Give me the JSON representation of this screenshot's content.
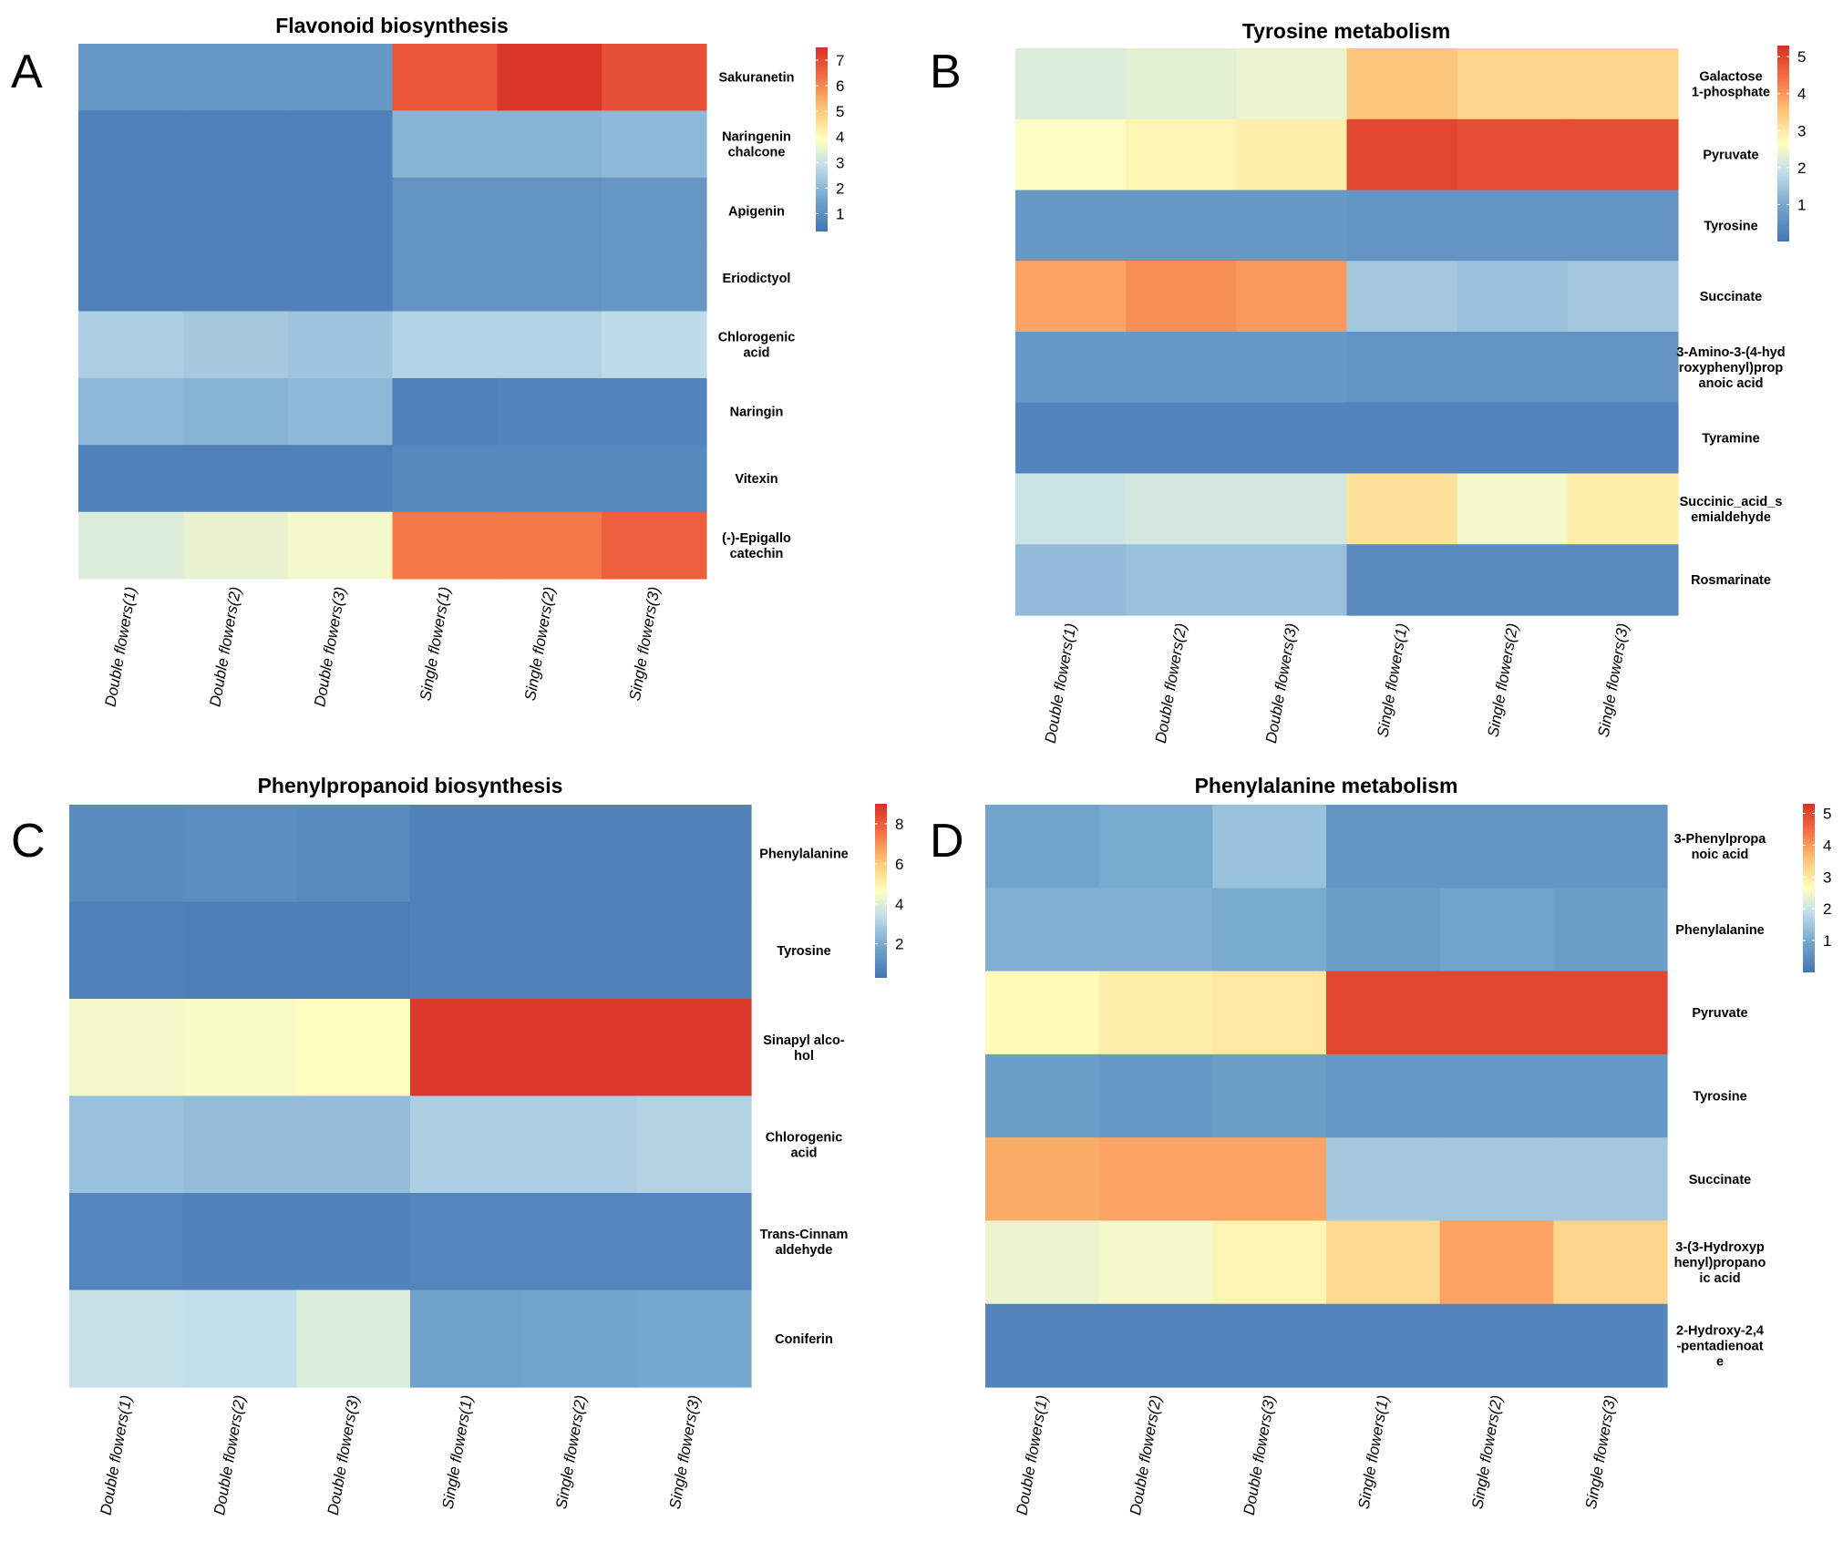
{
  "chart_data": [
    {
      "panel": "A",
      "type": "heatmap",
      "title": "Flavonoid biosynthesis",
      "columns": [
        "Double flowers(1)",
        "Double flowers(2)",
        "Double flowers(3)",
        "Single flowers(1)",
        "Single flowers(2)",
        "Single flowers(3)"
      ],
      "rows": [
        {
          "label": [
            "Sakuranetin"
          ],
          "values": [
            1.2,
            1.2,
            1.2,
            6.8,
            7.4,
            6.9
          ]
        },
        {
          "label": [
            "Naringenin",
            "chalcone"
          ],
          "values": [
            0.6,
            0.6,
            0.6,
            1.9,
            1.9,
            2.0
          ]
        },
        {
          "label": [
            "Apigenin"
          ],
          "values": [
            0.6,
            0.6,
            0.6,
            1.1,
            1.1,
            1.2
          ]
        },
        {
          "label": [
            "Eriodictyol"
          ],
          "values": [
            0.6,
            0.6,
            0.6,
            1.1,
            1.1,
            1.2
          ]
        },
        {
          "label": [
            "Chlorogenic",
            "acid"
          ],
          "values": [
            2.5,
            2.4,
            2.3,
            2.6,
            2.6,
            2.8
          ]
        },
        {
          "label": [
            "Naringin"
          ],
          "values": [
            2.0,
            1.9,
            2.0,
            0.6,
            0.7,
            0.7
          ]
        },
        {
          "label": [
            "Vitexin"
          ],
          "values": [
            0.6,
            0.6,
            0.6,
            0.8,
            0.8,
            0.8
          ]
        },
        {
          "label": [
            "(-)-Epigallo",
            "catechin"
          ],
          "values": [
            3.3,
            3.5,
            3.7,
            6.2,
            6.2,
            6.6
          ]
        }
      ],
      "scale": {
        "min": 0.3,
        "max": 7.5
      },
      "legend_ticks": [
        1,
        2,
        3,
        4,
        5,
        6,
        7
      ]
    },
    {
      "panel": "B",
      "type": "heatmap",
      "title": "Tyrosine metabolism",
      "columns": [
        "Double flowers(1)",
        "Double flowers(2)",
        "Double flowers(3)",
        "Single flowers(1)",
        "Single flowers(2)",
        "Single flowers(3)"
      ],
      "rows": [
        {
          "label": [
            "Galactose",
            "1-phosphate"
          ],
          "values": [
            2.2,
            2.3,
            2.4,
            3.5,
            3.3,
            3.3
          ]
        },
        {
          "label": [
            "Pyruvate"
          ],
          "values": [
            2.6,
            2.8,
            2.9,
            5.0,
            4.9,
            4.9
          ]
        },
        {
          "label": [
            "Tyrosine"
          ],
          "values": [
            0.7,
            0.7,
            0.7,
            0.6,
            0.6,
            0.6
          ]
        },
        {
          "label": [
            "Succinate"
          ],
          "values": [
            3.9,
            4.1,
            4.0,
            1.5,
            1.4,
            1.5
          ]
        },
        {
          "label": [
            "3-Amino-3-(4-hyd",
            "roxyphenyl)prop",
            "anoic acid"
          ],
          "values": [
            0.7,
            0.7,
            0.7,
            0.6,
            0.6,
            0.6
          ]
        },
        {
          "label": [
            "Tyramine"
          ],
          "values": [
            0.3,
            0.3,
            0.3,
            0.3,
            0.3,
            0.3
          ]
        },
        {
          "label": [
            "Succinic_acid_s",
            "emialdehyde"
          ],
          "values": [
            2.0,
            2.1,
            2.1,
            3.1,
            2.5,
            2.9
          ]
        },
        {
          "label": [
            "Rosmarinate"
          ],
          "values": [
            1.3,
            1.4,
            1.4,
            0.4,
            0.4,
            0.4
          ]
        }
      ],
      "scale": {
        "min": 0.0,
        "max": 5.3
      },
      "legend_ticks": [
        1,
        2,
        3,
        4,
        5
      ]
    },
    {
      "panel": "C",
      "type": "heatmap",
      "title": "Phenylpropanoid biosynthesis",
      "columns": [
        "Double flowers(1)",
        "Double flowers(2)",
        "Double flowers(3)",
        "Single flowers(1)",
        "Single flowers(2)",
        "Single flowers(3)"
      ],
      "rows": [
        {
          "label": [
            "Phenylalanine"
          ],
          "values": [
            1.0,
            1.1,
            1.0,
            0.7,
            0.7,
            0.7
          ]
        },
        {
          "label": [
            "Tyrosine"
          ],
          "values": [
            0.7,
            0.6,
            0.6,
            0.7,
            0.7,
            0.7
          ]
        },
        {
          "label": [
            "Sinapyl alco-",
            "hol"
          ],
          "values": [
            4.4,
            4.5,
            4.7,
            8.8,
            8.8,
            8.8
          ]
        },
        {
          "label": [
            "Chlorogenic",
            "acid"
          ],
          "values": [
            2.6,
            2.5,
            2.5,
            3.0,
            3.0,
            3.1
          ]
        },
        {
          "label": [
            "Trans-Cinnam",
            "aldehyde"
          ],
          "values": [
            0.8,
            0.7,
            0.7,
            0.8,
            0.8,
            0.8
          ]
        },
        {
          "label": [
            "Coniferin"
          ],
          "values": [
            3.5,
            3.4,
            3.9,
            1.7,
            1.8,
            1.9
          ]
        }
      ],
      "scale": {
        "min": 0.3,
        "max": 9.0
      },
      "legend_ticks": [
        2,
        4,
        6,
        8
      ]
    },
    {
      "panel": "D",
      "type": "heatmap",
      "title": "Phenylalanine metabolism",
      "columns": [
        "Double flowers(1)",
        "Double flowers(2)",
        "Double flowers(3)",
        "Single flowers(1)",
        "Single flowers(2)",
        "Single flowers(3)"
      ],
      "rows": [
        {
          "label": [
            "3-Phenylpropa",
            "noic acid"
          ],
          "values": [
            0.9,
            1.0,
            1.4,
            0.6,
            0.6,
            0.6
          ]
        },
        {
          "label": [
            "Phenylalanine"
          ],
          "values": [
            1.1,
            1.1,
            1.0,
            0.8,
            0.9,
            0.8
          ]
        },
        {
          "label": [
            "Pyruvate"
          ],
          "values": [
            2.7,
            2.9,
            3.0,
            5.0,
            5.0,
            5.0
          ]
        },
        {
          "label": [
            "Tyrosine"
          ],
          "values": [
            0.8,
            0.7,
            0.8,
            0.7,
            0.7,
            0.7
          ]
        },
        {
          "label": [
            "Succinate"
          ],
          "values": [
            3.8,
            3.9,
            3.9,
            1.5,
            1.5,
            1.5
          ]
        },
        {
          "label": [
            "3-(3-Hydroxyp",
            "henyl)propano",
            "ic acid"
          ],
          "values": [
            2.4,
            2.5,
            2.8,
            3.2,
            3.9,
            3.3
          ]
        },
        {
          "label": [
            "2-Hydroxy-2,4",
            "-pentadienoat",
            "e"
          ],
          "values": [
            0.3,
            0.3,
            0.3,
            0.3,
            0.3,
            0.3
          ]
        }
      ],
      "scale": {
        "min": 0.0,
        "max": 5.3
      },
      "legend_ticks": [
        1,
        2,
        3,
        4,
        5
      ]
    }
  ]
}
